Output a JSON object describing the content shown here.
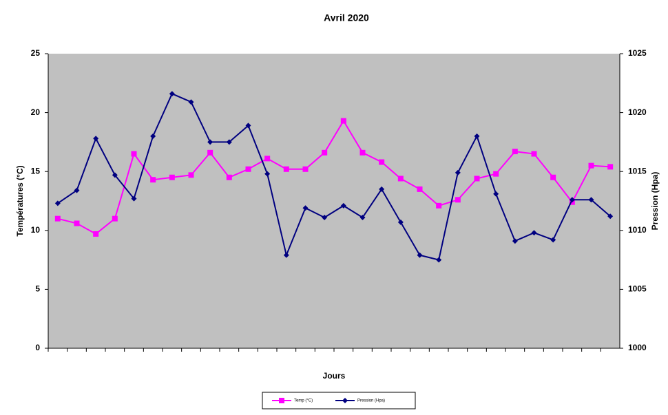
{
  "chart_data": {
    "type": "line",
    "title": "Avril 2020",
    "x_label": "Jours",
    "y_label": "Températures (°C)",
    "y2_label": "Pression (Hpa)",
    "categories": [
      null,
      null,
      null,
      null,
      null,
      null,
      null,
      null,
      null,
      null,
      null,
      null,
      null,
      null,
      null,
      null,
      null,
      null,
      null,
      null,
      null,
      null,
      null,
      null,
      null,
      null,
      null,
      null,
      null,
      null
    ],
    "series": [
      {
        "name": "Temp (°C)",
        "color": "#ff00ff",
        "marker": "square",
        "values": [
          11.0,
          10.6,
          9.7,
          11.0,
          16.5,
          14.3,
          14.5,
          14.7,
          16.6,
          14.5,
          15.2,
          16.1,
          15.2,
          15.2,
          16.6,
          19.3,
          16.6,
          15.8,
          14.4,
          13.5,
          12.1,
          12.6,
          14.4,
          14.8,
          16.7,
          16.5,
          14.5,
          12.4,
          15.5,
          15.4
        ]
      },
      {
        "name": "Pression (Hpa)",
        "color": "#000080",
        "marker": "diamond",
        "axis": "y2",
        "values": [
          1012.3,
          1013.4,
          1017.8,
          1014.7,
          1012.7,
          1018.0,
          1021.6,
          1020.9,
          1017.5,
          1017.5,
          1018.9,
          1014.8,
          1007.9,
          1011.9,
          1011.1,
          1012.1,
          1011.1,
          1013.5,
          1010.7,
          1007.9,
          1007.5,
          1014.9,
          1018.0,
          1013.1,
          1009.1,
          1009.8,
          1009.2,
          1012.6,
          1012.6,
          1011.2
        ]
      }
    ],
    "ylim": [
      0,
      25
    ],
    "yticks": [
      0,
      5,
      10,
      15,
      20,
      25
    ],
    "y2lim": [
      1000,
      1025
    ],
    "y2ticks": [
      1000,
      1005,
      1010,
      1015,
      1020,
      1025
    ],
    "plot_background": "#c0c0c0",
    "legend": "bottom"
  }
}
